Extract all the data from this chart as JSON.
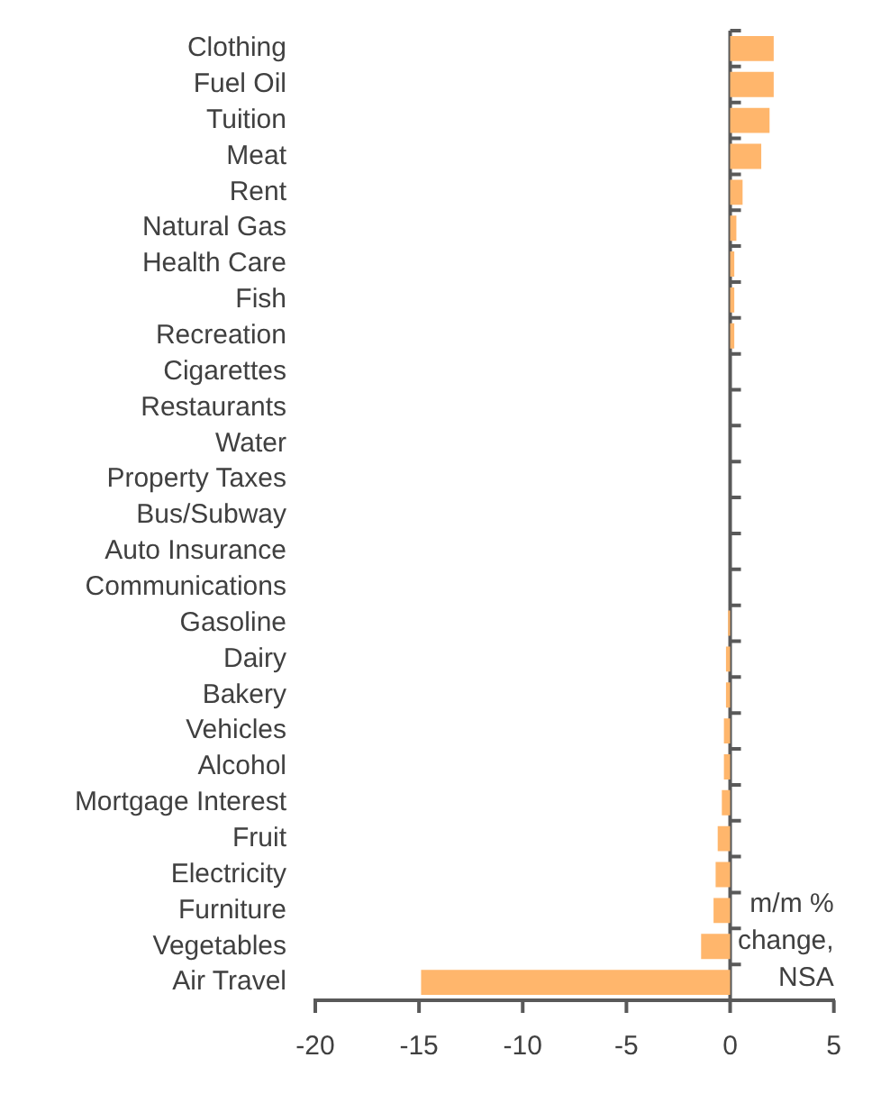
{
  "chart_data": {
    "type": "bar",
    "orientation": "horizontal",
    "categories": [
      "Clothing",
      "Fuel Oil",
      "Tuition",
      "Meat",
      "Rent",
      "Natural Gas",
      "Health Care",
      "Fish",
      "Recreation",
      "Cigarettes",
      "Restaurants",
      "Water",
      "Property Taxes",
      "Bus/Subway",
      "Auto Insurance",
      "Communications",
      "Gasoline",
      "Dairy",
      "Bakery",
      "Vehicles",
      "Alcohol",
      "Mortgage Interest",
      "Fruit",
      "Electricity",
      "Furniture",
      "Vegetables",
      "Air Travel"
    ],
    "values": [
      2.1,
      2.1,
      1.9,
      1.5,
      0.6,
      0.3,
      0.2,
      0.2,
      0.2,
      0,
      0,
      0,
      0,
      0,
      0,
      0,
      -0.1,
      -0.2,
      -0.2,
      -0.3,
      -0.3,
      -0.4,
      -0.6,
      -0.7,
      -0.8,
      -1.4,
      -14.9
    ],
    "color": "#ffb66c",
    "xlim": [
      -20,
      5
    ],
    "xticks": [
      -20,
      -15,
      -10,
      -5,
      0,
      5
    ],
    "grid": false,
    "legend": false,
    "ref_lines": [
      {
        "axis": "x",
        "value": 0
      }
    ],
    "annotations": [
      "m/m % change, NSA"
    ]
  }
}
